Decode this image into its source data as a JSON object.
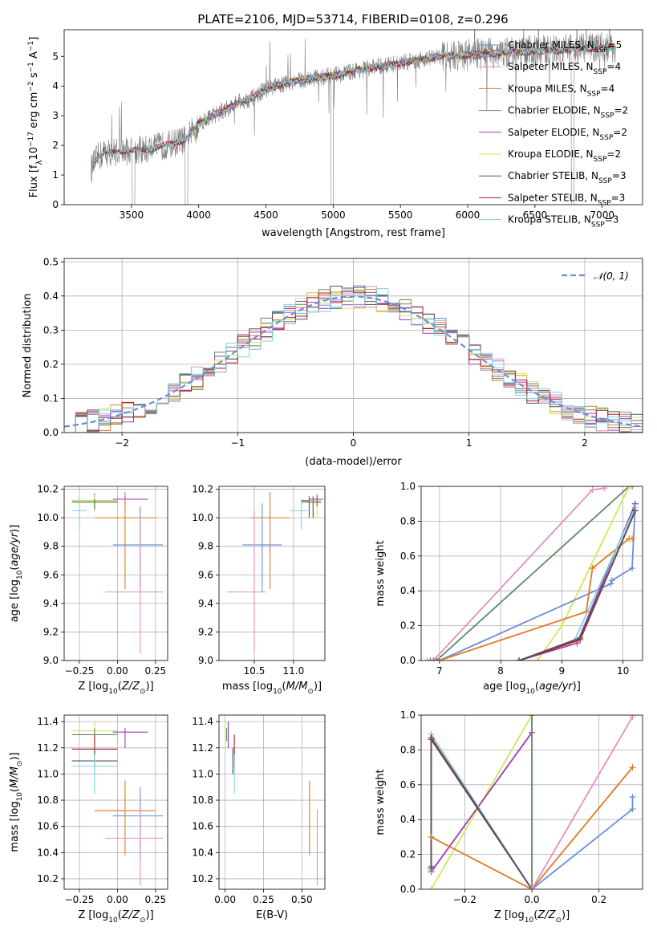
{
  "figure": {
    "title": "PLATE=2106, MJD=53714, FIBERID=0108, z=0.296",
    "colors": {
      "chabrier_miles": "#6a8ddb",
      "salpeter_miles": "#e58fbf",
      "kroupa_miles": "#e07a22",
      "chabrier_elodie": "#5a8a66",
      "salpeter_elodie": "#9b3cb8",
      "kroupa_elodie": "#d4e65a",
      "chabrier_stelib": "#555555",
      "salpeter_stelib": "#b01c2a",
      "kroupa_stelib": "#7dd4e0",
      "data": "#808080",
      "normal": "#6a8ddb"
    }
  },
  "legend": [
    {
      "text": "Chabrier MILES, N",
      "sub": "SSP",
      "tail": "=5",
      "color": "chabrier_miles"
    },
    {
      "text": "Salpeter MILES, N",
      "sub": "SSP",
      "tail": "=4",
      "color": "salpeter_miles"
    },
    {
      "text": "Kroupa MILES, N",
      "sub": "SSP",
      "tail": "=4",
      "color": "kroupa_miles"
    },
    {
      "text": "Chabrier ELODIE, N",
      "sub": "SSP",
      "tail": "=2",
      "color": "chabrier_elodie"
    },
    {
      "text": "Salpeter ELODIE, N",
      "sub": "SSP",
      "tail": "=2",
      "color": "salpeter_elodie"
    },
    {
      "text": "Kroupa ELODIE, N",
      "sub": "SSP",
      "tail": "=2",
      "color": "kroupa_elodie"
    },
    {
      "text": "Chabrier STELIB, N",
      "sub": "SSP",
      "tail": "=3",
      "color": "chabrier_stelib"
    },
    {
      "text": "Salpeter STELIB, N",
      "sub": "SSP",
      "tail": "=3",
      "color": "salpeter_stelib"
    },
    {
      "text": "Kroupa STELIB, N",
      "sub": "SSP",
      "tail": "=3",
      "color": "kroupa_stelib"
    }
  ],
  "chart_data": [
    {
      "id": "spectrum",
      "type": "line",
      "xlabel": "wavelength [Angstrom, rest frame]",
      "xlim": [
        3000,
        7300
      ],
      "ylim": [
        0,
        5.9
      ],
      "xticks": [
        3500,
        4000,
        4500,
        5000,
        5500,
        6000,
        6500,
        7000
      ],
      "yticks": [
        0,
        1,
        2,
        3,
        4,
        5
      ],
      "continuum_knots": {
        "x": [
          3200,
          3250,
          3300,
          3400,
          3500,
          3600,
          3700,
          3800,
          3900,
          3950,
          4000,
          4100,
          4200,
          4300,
          4400,
          4500,
          4700,
          4900,
          5000,
          5200,
          5400,
          5600,
          5800,
          6000,
          6200,
          6400,
          6600,
          6800,
          7000,
          7100
        ],
        "y": [
          1.2,
          1.6,
          1.75,
          1.8,
          1.8,
          1.85,
          1.95,
          2.05,
          2.2,
          2.45,
          2.75,
          3.0,
          3.2,
          3.45,
          3.6,
          3.9,
          4.15,
          4.3,
          4.35,
          4.55,
          4.7,
          4.85,
          5.0,
          5.05,
          5.1,
          5.15,
          5.2,
          5.25,
          5.3,
          5.3
        ]
      }
    },
    {
      "id": "residuals",
      "type": "histogram",
      "xlabel": "(data-model)/error",
      "ylabel": "Normed distribution",
      "xlim": [
        -2.5,
        2.5
      ],
      "ylim": [
        0,
        0.51
      ],
      "xticks": [
        -2,
        -1,
        0,
        1,
        2
      ],
      "yticks": [
        0.0,
        0.1,
        0.2,
        0.3,
        0.4,
        0.5
      ],
      "normal_label": "N(0,1)"
    },
    {
      "id": "age-vs-z",
      "type": "scatter",
      "xlabel": "Z [log10(Z/Z⊙)]",
      "xlim": [
        -0.35,
        0.33
      ],
      "ylim": [
        9.0,
        10.22
      ],
      "xticks": [
        -0.25,
        0.0,
        0.25
      ],
      "yticks": [
        9.0,
        9.2,
        9.4,
        9.6,
        9.8,
        10.0,
        10.2
      ],
      "bars": [
        {
          "c": "chabrier_stelib",
          "x": -0.15,
          "xe": [
            -0.3,
            0.0
          ],
          "y": 10.12,
          "ye": [
            10.05,
            10.17
          ]
        },
        {
          "c": "salpeter_stelib",
          "x": -0.15,
          "xe": [
            -0.3,
            0.0
          ],
          "y": 10.11,
          "ye": [
            10.05,
            10.15
          ]
        },
        {
          "c": "kroupa_stelib",
          "x": -0.25,
          "xe": [
            -0.3,
            -0.2
          ],
          "y": 10.05,
          "ye": [
            9.9,
            10.14
          ]
        },
        {
          "c": "kroupa_elodie",
          "x": -0.15,
          "xe": [
            -0.3,
            0.0
          ],
          "y": 10.12,
          "ye": [
            10.05,
            10.16
          ]
        },
        {
          "c": "salpeter_elodie",
          "x": 0.05,
          "xe": [
            -0.03,
            0.2
          ],
          "y": 10.13,
          "ye": [
            10.08,
            10.15
          ]
        },
        {
          "c": "chabrier_elodie",
          "x": -0.15,
          "xe": [
            -0.3,
            0.0
          ],
          "y": 10.11,
          "ye": [
            10.06,
            10.13
          ]
        },
        {
          "c": "kroupa_miles",
          "x": 0.05,
          "xe": [
            -0.15,
            0.25
          ],
          "y": 10.0,
          "ye": [
            9.5,
            10.18
          ]
        },
        {
          "c": "chabrier_miles",
          "x": 0.15,
          "xe": [
            -0.03,
            0.3
          ],
          "y": 9.81,
          "ye": [
            9.48,
            10.08
          ]
        },
        {
          "c": "salpeter_miles",
          "x": 0.15,
          "xe": [
            -0.08,
            0.3
          ],
          "y": 9.48,
          "ye": [
            9.05,
            10.0
          ]
        }
      ]
    },
    {
      "id": "age-vs-mass",
      "type": "scatter",
      "xlabel": "mass [log10(M/M⊙)]",
      "xlim": [
        10.05,
        11.4
      ],
      "ylim": [
        9.0,
        10.22
      ],
      "xticks": [
        10.5,
        11.0
      ],
      "yticks": [
        9.0,
        9.2,
        9.4,
        9.6,
        9.8,
        10.0,
        10.2
      ],
      "bars": [
        {
          "c": "kroupa_miles",
          "x": 10.7,
          "xe": [
            10.45,
            10.95
          ],
          "y": 10.0,
          "ye": [
            9.5,
            10.18
          ]
        },
        {
          "c": "chabrier_miles",
          "x": 10.6,
          "xe": [
            10.35,
            10.85
          ],
          "y": 9.81,
          "ye": [
            9.48,
            10.1
          ]
        },
        {
          "c": "salpeter_miles",
          "x": 10.5,
          "xe": [
            10.15,
            10.65
          ],
          "y": 9.48,
          "ye": [
            9.05,
            10.05
          ]
        },
        {
          "c": "chabrier_stelib",
          "x": 11.2,
          "xe": [
            11.1,
            11.3
          ],
          "y": 10.12,
          "ye": [
            10.0,
            10.15
          ]
        },
        {
          "c": "salpeter_stelib",
          "x": 11.25,
          "xe": [
            11.15,
            11.35
          ],
          "y": 10.11,
          "ye": [
            10.0,
            10.15
          ]
        },
        {
          "c": "kroupa_stelib",
          "x": 11.1,
          "xe": [
            10.95,
            11.2
          ],
          "y": 10.05,
          "ye": [
            9.92,
            10.13
          ]
        },
        {
          "c": "kroupa_elodie",
          "x": 11.3,
          "xe": [
            11.2,
            11.35
          ],
          "y": 10.12,
          "ye": [
            10.0,
            10.17
          ]
        },
        {
          "c": "salpeter_elodie",
          "x": 11.3,
          "xe": [
            11.2,
            11.38
          ],
          "y": 10.13,
          "ye": [
            10.08,
            10.16
          ]
        },
        {
          "c": "chabrier_elodie",
          "x": 11.25,
          "xe": [
            11.1,
            11.3
          ],
          "y": 10.11,
          "ye": [
            10.05,
            10.13
          ]
        }
      ]
    },
    {
      "id": "cumulative-age",
      "type": "line",
      "xlabel": "age [log10(age/yr)]",
      "ylabel": "mass weight",
      "xlim": [
        6.7,
        10.32
      ],
      "ylim": [
        0,
        1
      ],
      "xticks": [
        7,
        8,
        9,
        10
      ],
      "yticks": [
        0.0,
        0.2,
        0.4,
        0.6,
        0.8,
        1.0
      ],
      "series": [
        {
          "c": "salpeter_miles",
          "x": [
            6.8,
            6.9,
            9.5,
            9.7
          ],
          "y": [
            0,
            0,
            0.98,
            0.99
          ]
        },
        {
          "c": "chabrier_elodie",
          "x": [
            6.85,
            6.95,
            10.1,
            10.15
          ],
          "y": [
            0,
            0,
            1,
            1
          ]
        },
        {
          "c": "kroupa_elodie",
          "x": [
            8.6,
            9.0,
            10.1
          ],
          "y": [
            0,
            0.2,
            1
          ]
        },
        {
          "c": "chabrier_miles",
          "x": [
            6.9,
            7.0,
            9.8,
            9.82,
            10.15,
            10.2
          ],
          "y": [
            0,
            0,
            0.44,
            0.46,
            0.53,
            0.9
          ]
        },
        {
          "c": "kroupa_miles",
          "x": [
            6.9,
            7.0,
            9.4,
            9.5,
            10.1,
            10.15
          ],
          "y": [
            0,
            0,
            0.28,
            0.53,
            0.7,
            0.7
          ]
        },
        {
          "c": "salpeter_elodie",
          "x": [
            8.3,
            9.25,
            10.2
          ],
          "y": [
            0,
            0.1,
            0.9
          ]
        },
        {
          "c": "kroupa_stelib",
          "x": [
            8.3,
            9.2,
            10.2
          ],
          "y": [
            0,
            0.11,
            0.88
          ]
        },
        {
          "c": "salpeter_stelib",
          "x": [
            8.3,
            9.3,
            10.2
          ],
          "y": [
            0,
            0.12,
            0.86
          ]
        },
        {
          "c": "chabrier_stelib",
          "x": [
            8.3,
            9.3,
            10.2
          ],
          "y": [
            0,
            0.13,
            0.86
          ]
        }
      ]
    },
    {
      "id": "mass-vs-z",
      "type": "scatter",
      "ylabel": "mass [log10(M/M⊙)]",
      "xlabel": "Z [log10(Z/Z⊙)]",
      "xlim": [
        -0.35,
        0.33
      ],
      "ylim": [
        10.12,
        11.45
      ],
      "xticks": [
        -0.25,
        0.0,
        0.25
      ],
      "yticks": [
        10.2,
        10.4,
        10.6,
        10.8,
        11.0,
        11.2,
        11.4
      ],
      "bars": [
        {
          "c": "kroupa_elodie",
          "x": -0.15,
          "xe": [
            -0.3,
            0.0
          ],
          "y": 11.33,
          "ye": [
            11.2,
            11.4
          ]
        },
        {
          "c": "salpeter_elodie",
          "x": 0.05,
          "xe": [
            -0.03,
            0.2
          ],
          "y": 11.32,
          "ye": [
            11.2,
            11.35
          ]
        },
        {
          "c": "chabrier_elodie",
          "x": -0.15,
          "xe": [
            -0.3,
            0.0
          ],
          "y": 11.3,
          "ye": [
            11.25,
            11.35
          ]
        },
        {
          "c": "salpeter_stelib",
          "x": -0.15,
          "xe": [
            -0.3,
            0.0
          ],
          "y": 11.19,
          "ye": [
            11.05,
            11.3
          ]
        },
        {
          "c": "chabrier_stelib",
          "x": -0.15,
          "xe": [
            -0.3,
            0.0
          ],
          "y": 11.1,
          "ye": [
            11.0,
            11.2
          ]
        },
        {
          "c": "kroupa_stelib",
          "x": -0.15,
          "xe": [
            -0.3,
            0.0
          ],
          "y": 11.06,
          "ye": [
            10.85,
            11.15
          ]
        },
        {
          "c": "kroupa_miles",
          "x": 0.05,
          "xe": [
            -0.15,
            0.25
          ],
          "y": 10.72,
          "ye": [
            10.38,
            10.95
          ]
        },
        {
          "c": "chabrier_miles",
          "x": 0.15,
          "xe": [
            -0.03,
            0.3
          ],
          "y": 10.68,
          "ye": [
            10.35,
            10.9
          ]
        },
        {
          "c": "salpeter_miles",
          "x": 0.15,
          "xe": [
            -0.08,
            0.3
          ],
          "y": 10.51,
          "ye": [
            10.15,
            10.73
          ]
        }
      ]
    },
    {
      "id": "mass-vs-ebv",
      "type": "scatter",
      "xlabel": "E(B-V)",
      "xlim": [
        -0.04,
        0.65
      ],
      "ylim": [
        10.12,
        11.45
      ],
      "xticks": [
        0.0,
        0.25,
        0.5
      ],
      "yticks": [
        10.2,
        10.4,
        10.6,
        10.8,
        11.0,
        11.2,
        11.4
      ],
      "bars": [
        {
          "c": "kroupa_elodie",
          "x": 0.0,
          "xe": [
            0.0,
            0.0
          ],
          "y": 11.33,
          "ye": [
            11.2,
            11.4
          ]
        },
        {
          "c": "salpeter_elodie",
          "x": 0.02,
          "xe": [
            0.02,
            0.02
          ],
          "y": 11.32,
          "ye": [
            11.2,
            11.4
          ]
        },
        {
          "c": "chabrier_elodie",
          "x": 0.01,
          "xe": [
            0.01,
            0.01
          ],
          "y": 11.3,
          "ye": [
            11.25,
            11.35
          ]
        },
        {
          "c": "salpeter_stelib",
          "x": 0.06,
          "xe": [
            0.06,
            0.06
          ],
          "y": 11.19,
          "ye": [
            11.05,
            11.3
          ]
        },
        {
          "c": "chabrier_stelib",
          "x": 0.05,
          "xe": [
            0.05,
            0.05
          ],
          "y": 11.1,
          "ye": [
            11.0,
            11.2
          ]
        },
        {
          "c": "kroupa_stelib",
          "x": 0.06,
          "xe": [
            0.06,
            0.06
          ],
          "y": 11.06,
          "ye": [
            10.85,
            11.15
          ]
        },
        {
          "c": "kroupa_miles",
          "x": 0.55,
          "xe": [
            0.55,
            0.55
          ],
          "y": 10.72,
          "ye": [
            10.38,
            10.95
          ]
        },
        {
          "c": "salpeter_miles",
          "x": 0.6,
          "xe": [
            0.6,
            0.6
          ],
          "y": 10.51,
          "ye": [
            10.15,
            10.73
          ]
        }
      ]
    },
    {
      "id": "cumulative-z",
      "type": "line",
      "xlabel": "Z [log10(Z/Z⊙)]",
      "ylabel": "mass weight",
      "xlim": [
        -0.33,
        0.33
      ],
      "ylim": [
        0,
        1
      ],
      "xticks": [
        -0.2,
        0.0,
        0.2
      ],
      "yticks": [
        0.0,
        0.2,
        0.4,
        0.6,
        0.8,
        1.0
      ],
      "series": [
        {
          "c": "kroupa_elodie",
          "x": [
            -0.3,
            0.0
          ],
          "y": [
            0,
            1
          ]
        },
        {
          "c": "salpeter_elodie",
          "x": [
            -0.3,
            0.0
          ],
          "y": [
            0.1,
            0.9
          ]
        },
        {
          "c": "chabrier_elodie",
          "x": [
            0.0,
            0.0
          ],
          "y": [
            0,
            1
          ]
        },
        {
          "c": "kroupa_stelib",
          "x": [
            -0.3,
            -0.3,
            0.0
          ],
          "y": [
            0.11,
            0.89,
            0
          ]
        },
        {
          "c": "salpeter_stelib",
          "x": [
            -0.3,
            -0.3,
            0.0
          ],
          "y": [
            0.12,
            0.87,
            0
          ]
        },
        {
          "c": "chabrier_stelib",
          "x": [
            -0.3,
            -0.3,
            0.0
          ],
          "y": [
            0.13,
            0.86,
            0
          ]
        },
        {
          "c": "kroupa_miles",
          "x": [
            -0.3,
            0.0,
            0.3
          ],
          "y": [
            0.3,
            0,
            0.7
          ]
        },
        {
          "c": "chabrier_miles",
          "x": [
            0.0,
            0.3,
            0.3
          ],
          "y": [
            0,
            0.46,
            0.53
          ]
        },
        {
          "c": "salpeter_miles",
          "x": [
            0.0,
            0.3
          ],
          "y": [
            0,
            0.99
          ]
        }
      ]
    }
  ]
}
